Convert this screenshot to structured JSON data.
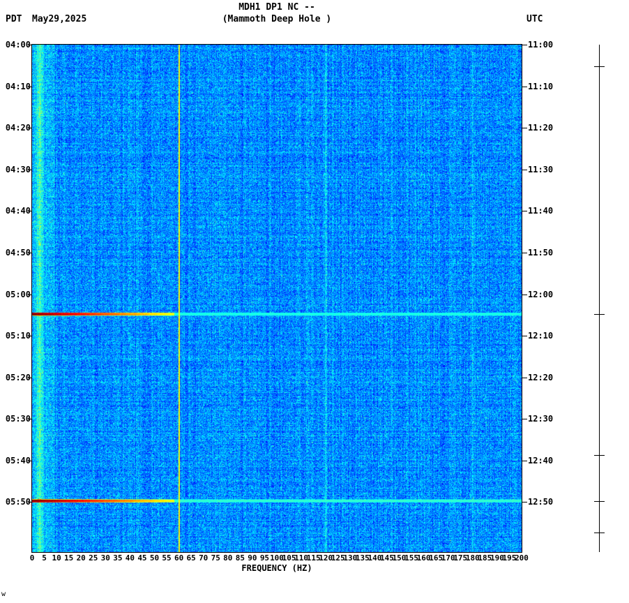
{
  "header": {
    "station_title": "MDH1 DP1 NC --",
    "station_subtitle": "(Mammoth Deep Hole )",
    "left_timezone": "PDT",
    "date": "May29,2025",
    "right_timezone": "UTC"
  },
  "corner_mark": "w",
  "colors": {
    "background": "#ffffff",
    "text": "#000000",
    "plot_border": "#000000",
    "noise_base_blue": "#0a8aff",
    "event_peak_red": "#8b0000",
    "hum_line_yellow_green": "#b4c800"
  },
  "chart_data": {
    "type": "heatmap",
    "subtype": "spectrogram",
    "title": "MDH1 DP1 NC -- (Mammoth Deep Hole )",
    "xlabel": "FREQUENCY (HZ)",
    "x_range_hz": [
      0,
      200
    ],
    "x_tick_step_hz": 5,
    "x_tick_labels": [
      "0",
      "5",
      "10",
      "15",
      "20",
      "25",
      "30",
      "35",
      "40",
      "45",
      "50",
      "55",
      "60",
      "65",
      "70",
      "75",
      "80",
      "85",
      "90",
      "95",
      "100",
      "105",
      "110",
      "115",
      "120",
      "125",
      "130",
      "135",
      "140",
      "145",
      "150",
      "155",
      "160",
      "165",
      "170",
      "175",
      "180",
      "185",
      "190",
      "195",
      "200"
    ],
    "time_axis_left_pdt": [
      "04:00",
      "04:10",
      "04:20",
      "04:30",
      "04:40",
      "04:50",
      "05:00",
      "05:10",
      "05:20",
      "05:30",
      "05:40",
      "05:50"
    ],
    "time_axis_right_utc": [
      "11:00",
      "11:10",
      "11:20",
      "11:30",
      "11:40",
      "11:50",
      "12:00",
      "12:10",
      "12:20",
      "12:30",
      "12:40",
      "12:50"
    ],
    "time_span_minutes": 122,
    "colormap": "jet",
    "value_scale": {
      "min": 0,
      "max": 1
    },
    "grid": false,
    "legend": false,
    "noise": {
      "seed": 20250529,
      "base_value": 0.16,
      "spread": 0.2,
      "speckle_chance": 0.03,
      "speckle_boost": 0.12,
      "low_freq_band_max_hz": 9,
      "low_freq_bright_line_hz": 3
    },
    "vertical_lines_hz": [
      {
        "hz": 60,
        "value": 0.6,
        "style": "solid line"
      },
      {
        "hz": 120,
        "boost": 0.08,
        "style": "faint"
      },
      {
        "hz": 180,
        "boost": 0.07,
        "style": "faint"
      }
    ],
    "events": [
      {
        "time_pdt": "05:05",
        "time_utc": "12:05",
        "minutes_from_start": 64.8,
        "peak_value": 0.99,
        "tail_value": 0.4,
        "description": "broadband transient: dark red below ~15 Hz grading through orange and yellow to ~55 Hz, faint cyan stripe continuing to 200 Hz"
      },
      {
        "time_pdt": "05:49",
        "time_utc": "12:49",
        "minutes_from_start": 109.7,
        "peak_value": 1.0,
        "tail_value": 0.42,
        "description": "stronger broadband transient: dark red below ~20 Hz, orange/yellow to ~55 Hz, bright cyan stripe continuing to 200 Hz"
      }
    ],
    "right_scale_tick_minutes": [
      5.2,
      64.8,
      98.6,
      109.7,
      117.3
    ]
  }
}
